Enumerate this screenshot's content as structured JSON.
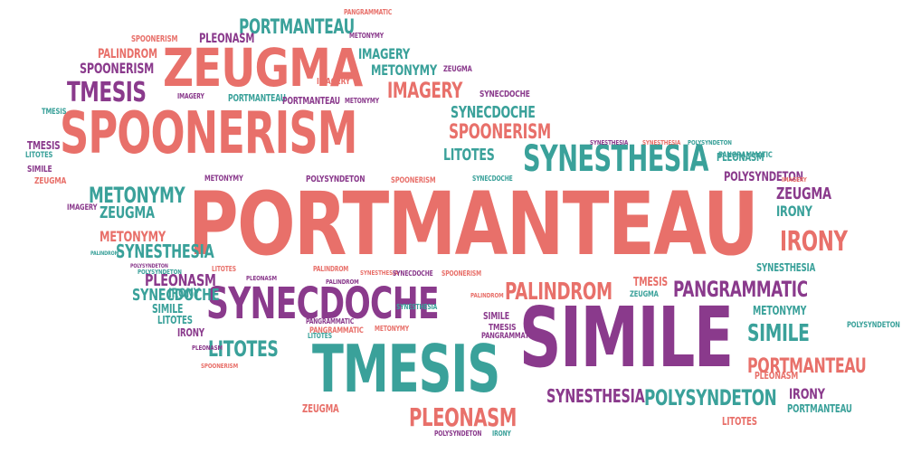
{
  "colors": {
    "coral": "#e8706a",
    "teal": "#3aa19a",
    "purple": "#8a3a8c"
  },
  "words": [
    "PORTMANTEAU",
    "SPOONERISM",
    "SIMILE",
    "ZEUGMA",
    "TMESIS",
    "SYNECDOCHE",
    "SYNESTHESIA",
    "PALINDROM",
    "PANGRAMMATIC",
    "POLYSYNDETON",
    "IRONY",
    "PLEONASM",
    "METONYMY",
    "IMAGERY",
    "LITOTES",
    "PORTMANTEAU",
    "PANGRAMMATIC",
    "SPOONERISM",
    "METONYMY",
    "PLEONASM",
    "PALINDROM",
    "IMAGERY",
    "METONYMY",
    "ZEUGMA",
    "SPOONERISM",
    "IMAGERY",
    "PORTMANTEAU",
    "PORTMANTEAU",
    "METONYMY",
    "IMAGERY",
    "TMESIS",
    "SYNECDOCHE",
    "SPOONERISM",
    "TMESIS",
    "TMESIS",
    "SIMILE",
    "ZEUGMA",
    "LITOTES",
    "SYNECDOCHE",
    "SPOONERISM",
    "SYNECDOCHE",
    "SYNESTHESIA",
    "LITOTES",
    "POLYSYNDETON",
    "METONYMY",
    "SYNESTHESIA",
    "POLYSYNDETON",
    "PANGRAMMATIC",
    "IMAGERY",
    "ZEUGMA",
    "METONYMY",
    "PALINDROM",
    "SYNESTHESIA",
    "POLYSYNDETON",
    "SYNECDOCHE",
    "PLEONASM",
    "PALINDROM",
    "IRONY",
    "SIMILE",
    "PANGRAMMATIC",
    "LITOTES",
    "PLEONASM",
    "PALINDROM",
    "SYNESTHESIA",
    "SYNECDOCHE",
    "SPOONERISM",
    "POLYSYNDETON",
    "TMESIS",
    "LITOTES",
    "PALINDROM",
    "SYNESTHESIA",
    "IRONY",
    "ZEUGMA",
    "SIMILE",
    "LITOTES",
    "PANGRAMMATIC",
    "PLEONASM",
    "TMESIS",
    "IRONY",
    "SIMILE",
    "PLEONASM",
    "POLYSYNDETON",
    "IMAGERY",
    "ZEUGMA",
    "PORTMANTEAU",
    "METONYMY",
    "PLEONASM",
    "SYNESTHESIA",
    "POLYSYNDETON",
    "SPOONERISM",
    "PANGRAMMATIC",
    "METONYMY",
    "POLYSYNDETON",
    "IRONY",
    "LITOTES",
    "SYNESTHESIA",
    "IRONY",
    "PORTMANTEAU",
    "ZEUGMA"
  ]
}
